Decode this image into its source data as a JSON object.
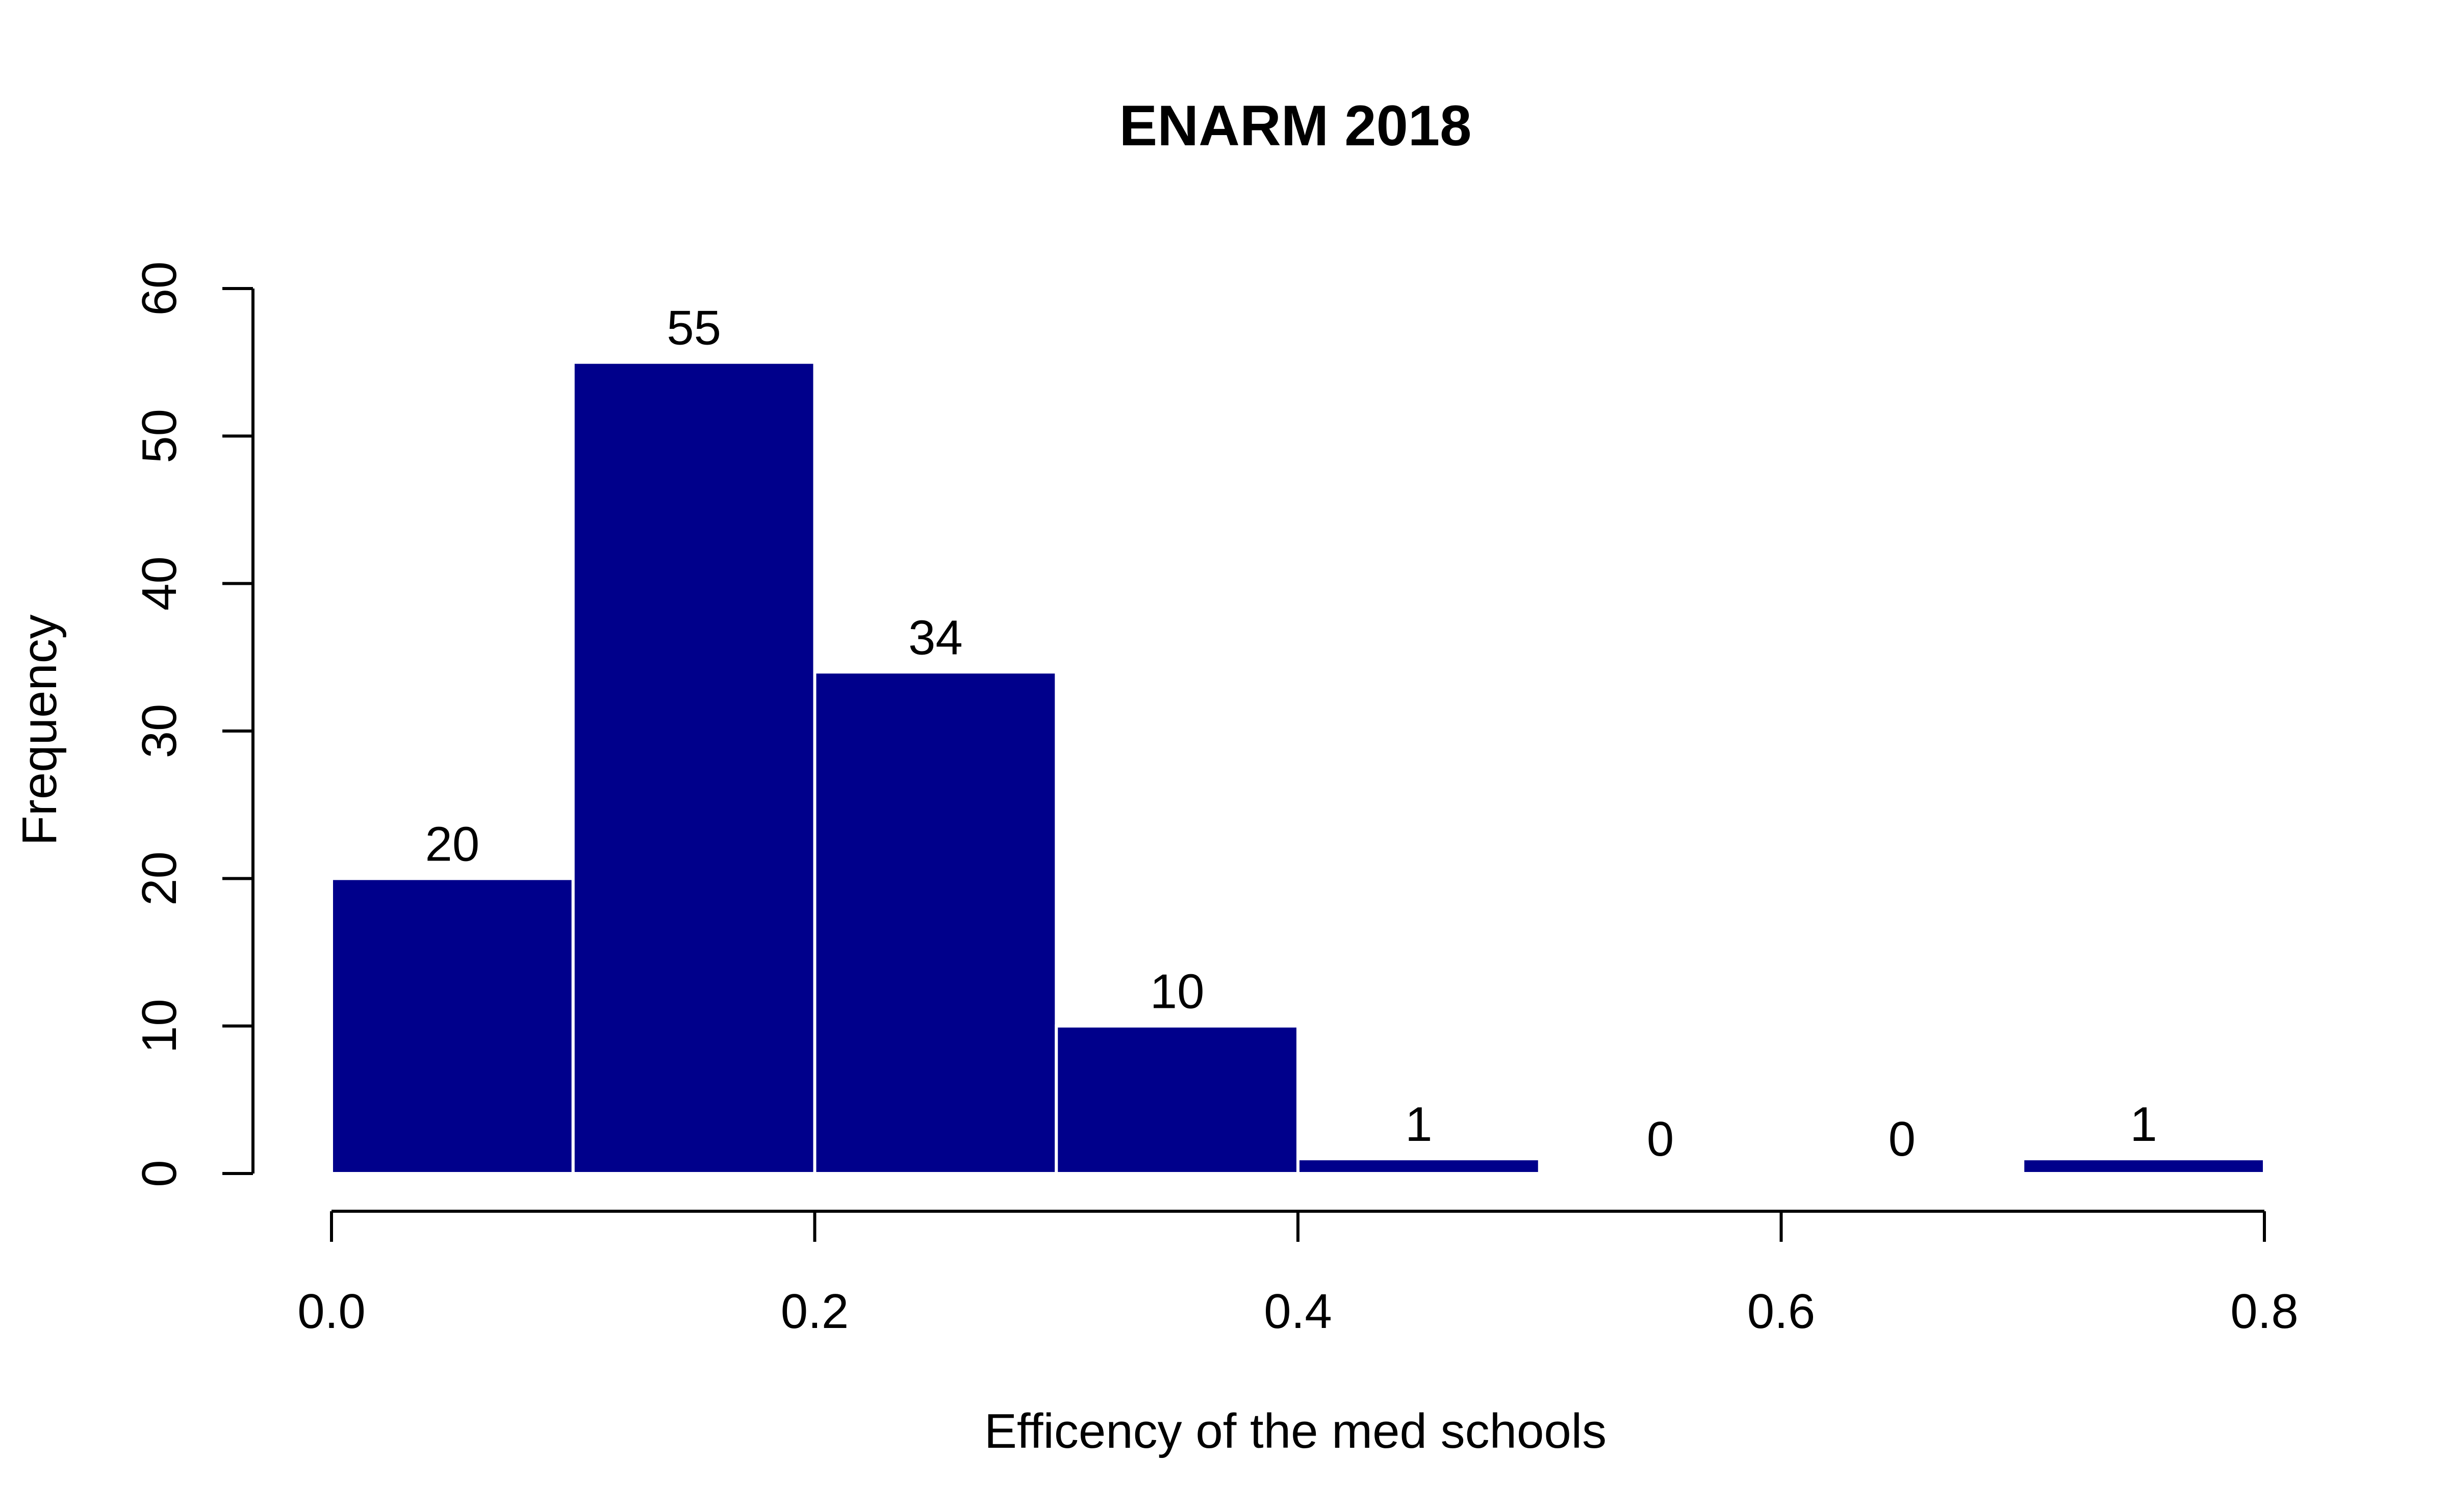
{
  "chart_data": {
    "type": "bar",
    "title": "ENARM 2018",
    "xlabel": "Efficency of the med schools",
    "ylabel": "Frequency",
    "bins": [
      {
        "from": 0.0,
        "to": 0.1,
        "value": 20,
        "label": "20"
      },
      {
        "from": 0.1,
        "to": 0.2,
        "value": 55,
        "label": "55"
      },
      {
        "from": 0.2,
        "to": 0.3,
        "value": 34,
        "label": "34"
      },
      {
        "from": 0.3,
        "to": 0.4,
        "value": 10,
        "label": "10"
      },
      {
        "from": 0.4,
        "to": 0.5,
        "value": 1,
        "label": "1"
      },
      {
        "from": 0.5,
        "to": 0.6,
        "value": 0,
        "label": "0"
      },
      {
        "from": 0.6,
        "to": 0.7,
        "value": 0,
        "label": "0"
      },
      {
        "from": 0.7,
        "to": 0.8,
        "value": 1,
        "label": "1"
      }
    ],
    "x_ticks": [
      "0.0",
      "0.2",
      "0.4",
      "0.6",
      "0.8"
    ],
    "y_ticks": [
      "0",
      "10",
      "20",
      "30",
      "40",
      "50",
      "60"
    ],
    "xlim": [
      0,
      0.8
    ],
    "ylim": [
      0,
      60
    ],
    "grid": false,
    "bar_color": "#00008B",
    "bar_border_color": "#ffffff"
  }
}
